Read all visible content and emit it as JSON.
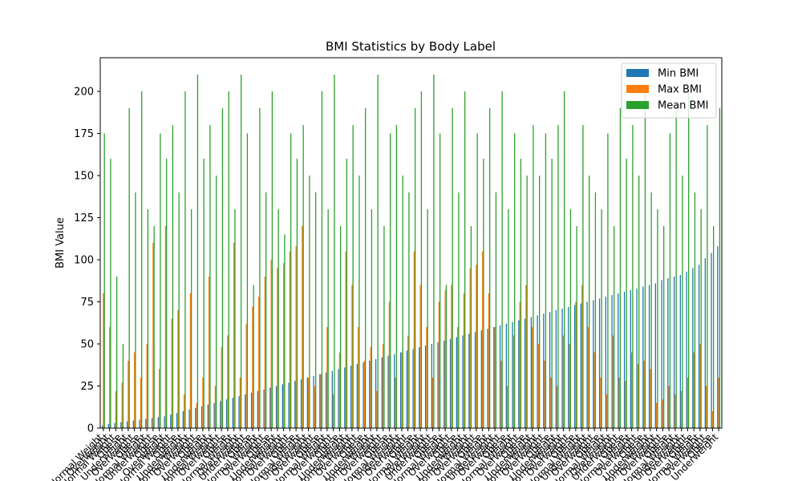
{
  "chart_data": {
    "type": "bar",
    "title": "BMI Statistics by Body Label",
    "xlabel": "",
    "ylabel": "BMI Value",
    "ylim": [
      0,
      220
    ],
    "yticks": [
      0,
      25,
      50,
      75,
      100,
      125,
      150,
      175,
      200
    ],
    "grid": false,
    "legend_position": "top-right",
    "colors": [
      "#1f77b4",
      "#ff7f0e",
      "#2ca02c"
    ],
    "categories": [
      "Normal Weight",
      "Overweight",
      "Normal Weight",
      "Obese",
      "Underweight",
      "Overweight",
      "Obese",
      "Normal Weight",
      "Underweight",
      "Obese",
      "Overweight",
      "Normal Weight",
      "Obese",
      "Underweight",
      "Normal Weight",
      "Overweight",
      "Obese",
      "Underweight",
      "Normal Weight",
      "Overweight",
      "Obese",
      "Normal Weight",
      "Overweight",
      "Underweight",
      "Obese",
      "Normal Weight",
      "Overweight",
      "Obese",
      "Underweight",
      "Normal Weight",
      "Overweight",
      "Obese",
      "Normal Weight",
      "Underweight",
      "Overweight",
      "Obese",
      "Normal Weight",
      "Overweight",
      "Obese",
      "Underweight",
      "Normal Weight",
      "Overweight",
      "Obese",
      "Underweight",
      "Normal Weight",
      "Overweight",
      "Obese",
      "Normal Weight",
      "Underweight",
      "Overweight",
      "Obese",
      "Normal Weight",
      "Overweight",
      "Underweight",
      "Obese",
      "Normal Weight",
      "Overweight",
      "Obese",
      "Underweight",
      "Normal Weight",
      "Overweight",
      "Obese",
      "Normal Weight",
      "Underweight",
      "Overweight",
      "Obese",
      "Normal Weight",
      "Overweight",
      "Obese",
      "Underweight",
      "Normal Weight",
      "Overweight",
      "Obese",
      "Underweight",
      "Normal Weight",
      "Overweight",
      "Obese",
      "Normal Weight",
      "Underweight",
      "Overweight",
      "Obese",
      "Normal Weight",
      "Overweight",
      "Underweight",
      "Obese",
      "Normal Weight",
      "Overweight",
      "Obese",
      "Underweight",
      "Normal Weight",
      "Overweight",
      "Obese",
      "Normal Weight",
      "Underweight",
      "Overweight",
      "Obese",
      "Normal Weight",
      "Overweight",
      "Obese",
      "Underweight"
    ],
    "series": [
      {
        "name": "Min BMI",
        "values": [
          1.5,
          2.5,
          3,
          3.5,
          4,
          4.5,
          5,
          5.5,
          6,
          6.5,
          7,
          8,
          9,
          10,
          11,
          12,
          13,
          14,
          15,
          16,
          17,
          18,
          19,
          20,
          21,
          22,
          23,
          24,
          25,
          26,
          27,
          28,
          29,
          30,
          31,
          32,
          33,
          34,
          35,
          36,
          37,
          38,
          39,
          40,
          41,
          42,
          43,
          44,
          45,
          46,
          47,
          48,
          49,
          50,
          51,
          52,
          53,
          54,
          55,
          56,
          57,
          58,
          59,
          60,
          61,
          62,
          63,
          64,
          65,
          66,
          67,
          68,
          69,
          70,
          71,
          72,
          73,
          74,
          75,
          76,
          77,
          78,
          79,
          80,
          81,
          82,
          83,
          84,
          85,
          86,
          88,
          89,
          90,
          91,
          93,
          95,
          97,
          101,
          104,
          108
        ]
      },
      {
        "name": "Max BMI",
        "values": [
          80,
          60,
          22,
          27,
          40,
          45,
          30,
          50,
          110,
          35,
          120,
          65,
          70,
          20,
          80,
          15,
          30,
          90,
          25,
          48,
          55,
          110,
          30,
          62,
          72,
          78,
          90,
          100,
          95,
          98,
          105,
          108,
          120,
          30,
          25,
          32,
          60,
          20,
          45,
          105,
          85,
          60,
          40,
          48,
          22,
          50,
          75,
          30,
          45,
          55,
          105,
          85,
          60,
          30,
          75,
          82,
          85,
          60,
          80,
          95,
          97,
          105,
          80,
          60,
          40,
          25,
          55,
          75,
          85,
          60,
          50,
          40,
          30,
          25,
          55,
          50,
          75,
          85,
          60,
          45,
          30,
          20,
          55,
          30,
          28,
          45,
          38,
          40,
          35,
          15,
          17,
          25,
          20,
          22,
          30,
          45,
          50,
          25,
          10,
          30
        ]
      },
      {
        "name": "Mean BMI",
        "values": [
          175,
          160,
          90,
          50,
          190,
          140,
          200,
          130,
          120,
          175,
          160,
          180,
          140,
          200,
          130,
          210,
          160,
          180,
          150,
          190,
          200,
          130,
          210,
          175,
          85,
          190,
          140,
          200,
          130,
          115,
          175,
          160,
          180,
          150,
          140,
          200,
          130,
          210,
          120,
          160,
          180,
          150,
          190,
          130,
          210,
          120,
          175,
          180,
          150,
          140,
          190,
          200,
          130,
          210,
          175,
          85,
          190,
          140,
          200,
          120,
          175,
          160,
          190,
          140,
          200,
          130,
          175,
          160,
          150,
          180,
          150,
          175,
          160,
          180,
          200,
          130,
          120,
          180,
          150,
          140,
          130,
          175,
          120,
          190,
          160,
          180,
          150,
          200,
          140,
          130,
          120,
          175,
          190,
          150,
          200,
          140,
          130,
          180,
          120,
          190
        ]
      }
    ]
  }
}
